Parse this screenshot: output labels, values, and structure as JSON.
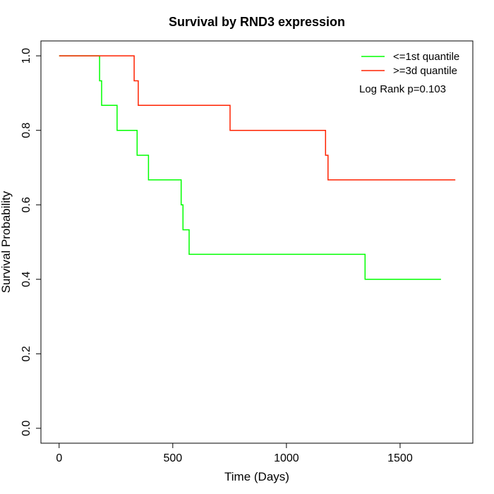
{
  "chart_data": {
    "type": "line",
    "title": "Survival by RND3 expression",
    "xlabel": "Time (Days)",
    "ylabel": "Survival Probability",
    "xlim": [
      -80,
      1820
    ],
    "ylim": [
      -0.04,
      1.04
    ],
    "x_ticks": [
      0,
      500,
      1000,
      1500
    ],
    "x_tick_labels": [
      "0",
      "500",
      "1000",
      "1500"
    ],
    "y_ticks": [
      0.0,
      0.2,
      0.4,
      0.6,
      0.8,
      1.0
    ],
    "y_tick_labels": [
      "0.0",
      "0.2",
      "0.4",
      "0.6",
      "0.8",
      "1.0"
    ],
    "grid": false,
    "legend_position": "top-right",
    "annotation": "Log Rank p=0.103",
    "series": [
      {
        "name": "<=1st quantile",
        "color": "#00ff00",
        "step": true,
        "points": [
          [
            0,
            1.0
          ],
          [
            178,
            1.0
          ],
          [
            178,
            0.933
          ],
          [
            187,
            0.933
          ],
          [
            187,
            0.867
          ],
          [
            255,
            0.867
          ],
          [
            255,
            0.8
          ],
          [
            343,
            0.8
          ],
          [
            343,
            0.733
          ],
          [
            393,
            0.733
          ],
          [
            393,
            0.667
          ],
          [
            537,
            0.667
          ],
          [
            537,
            0.6
          ],
          [
            545,
            0.6
          ],
          [
            545,
            0.533
          ],
          [
            572,
            0.533
          ],
          [
            572,
            0.467
          ],
          [
            1346,
            0.467
          ],
          [
            1346,
            0.4
          ],
          [
            1680,
            0.4
          ]
        ]
      },
      {
        "name": ">=3d quantile",
        "color": "#ff2200",
        "step": true,
        "points": [
          [
            0,
            1.0
          ],
          [
            330,
            1.0
          ],
          [
            330,
            0.933
          ],
          [
            348,
            0.933
          ],
          [
            348,
            0.867
          ],
          [
            752,
            0.867
          ],
          [
            752,
            0.8
          ],
          [
            1172,
            0.8
          ],
          [
            1172,
            0.733
          ],
          [
            1183,
            0.733
          ],
          [
            1183,
            0.667
          ],
          [
            1743,
            0.667
          ]
        ]
      }
    ]
  }
}
